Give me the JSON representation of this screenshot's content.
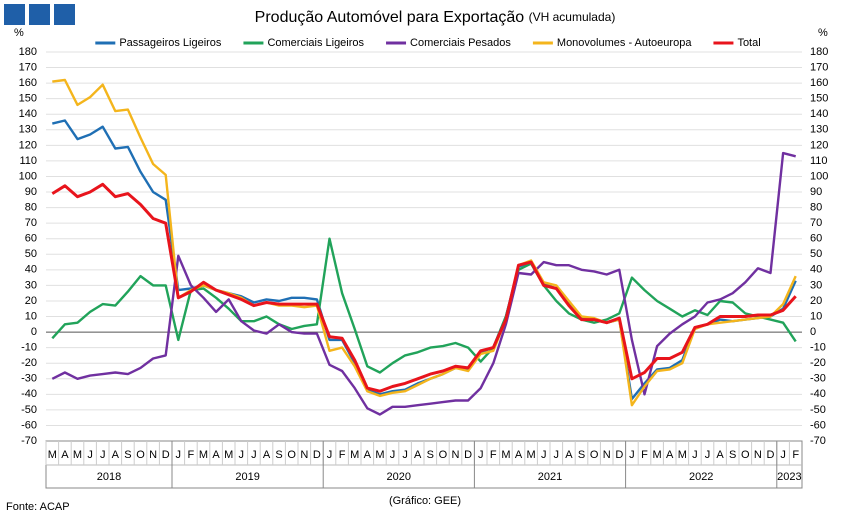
{
  "chart_data": {
    "type": "line",
    "title": "Produção Automóvel para Exportação",
    "subtitle": "(VH acumulada)",
    "y_label": "%",
    "y2_label": "%",
    "source": "Fonte: ACAP",
    "credit": "(Gráfico: GEE)",
    "categories": [
      "M",
      "A",
      "M",
      "J",
      "J",
      "A",
      "S",
      "O",
      "N",
      "D",
      "J",
      "F",
      "M",
      "A",
      "M",
      "J",
      "J",
      "A",
      "S",
      "O",
      "N",
      "D",
      "J",
      "F",
      "M",
      "A",
      "M",
      "J",
      "J",
      "A",
      "S",
      "O",
      "N",
      "D",
      "J",
      "F",
      "M",
      "A",
      "M",
      "J",
      "J",
      "A",
      "S",
      "O",
      "N",
      "D",
      "J",
      "F",
      "M",
      "A",
      "M",
      "J",
      "J",
      "A",
      "S",
      "O",
      "N",
      "D",
      "J",
      "F"
    ],
    "year_groups": [
      {
        "label": "2018",
        "count": 10
      },
      {
        "label": "2019",
        "count": 12
      },
      {
        "label": "2020",
        "count": 12
      },
      {
        "label": "2021",
        "count": 12
      },
      {
        "label": "2022",
        "count": 12
      },
      {
        "label": "2023",
        "count": 2
      }
    ],
    "ylim": [
      -70,
      180
    ],
    "yticks": [
      -70,
      -60,
      -50,
      -40,
      -30,
      -20,
      -10,
      0,
      10,
      20,
      30,
      40,
      50,
      60,
      70,
      80,
      90,
      100,
      110,
      120,
      130,
      140,
      150,
      160,
      170,
      180
    ],
    "grid": true,
    "legend": "top",
    "series": [
      {
        "name": "Passageiros Ligeiros",
        "color": "#1f6fb4",
        "values": [
          134,
          136,
          124,
          127,
          132,
          118,
          119,
          103,
          90,
          85,
          27,
          28,
          30,
          27,
          25,
          23,
          19,
          21,
          20,
          22,
          22,
          21,
          -5,
          -5,
          -20,
          -37,
          -40,
          -38,
          -37,
          -33,
          -30,
          -27,
          -23,
          -24,
          -13,
          -10,
          10,
          42,
          45,
          31,
          28,
          18,
          9,
          8,
          6,
          8,
          -43,
          -33,
          -24,
          -23,
          -18,
          3,
          5,
          8,
          7,
          8,
          9,
          10,
          15,
          33
        ]
      },
      {
        "name": "Comerciais Ligeiros",
        "color": "#21a35a",
        "values": [
          -4,
          5,
          6,
          13,
          18,
          17,
          26,
          36,
          30,
          30,
          -5,
          27,
          28,
          22,
          15,
          7,
          7,
          10,
          5,
          2,
          4,
          5,
          60,
          25,
          2,
          -22,
          -26,
          -20,
          -15,
          -13,
          -10,
          -9,
          -7,
          -10,
          -19,
          -10,
          10,
          40,
          44,
          30,
          20,
          12,
          8,
          6,
          8,
          12,
          35,
          27,
          20,
          15,
          10,
          14,
          11,
          20,
          19,
          12,
          10,
          8,
          6,
          -6
        ]
      },
      {
        "name": "Comerciais Pesados",
        "color": "#7030a0",
        "values": [
          -30,
          -26,
          -30,
          -28,
          -27,
          -26,
          -27,
          -23,
          -17,
          -15,
          49,
          30,
          22,
          13,
          21,
          7,
          1,
          -1,
          5,
          0,
          -1,
          -1,
          -21,
          -25,
          -36,
          -49,
          -53,
          -48,
          -48,
          -47,
          -46,
          -45,
          -44,
          -44,
          -36,
          -20,
          5,
          38,
          37,
          45,
          43,
          43,
          40,
          39,
          37,
          40,
          -5,
          -40,
          -9,
          -1,
          5,
          10,
          19,
          21,
          25,
          32,
          41,
          38,
          115,
          113
        ]
      },
      {
        "name": "Monovolumes - Autoeuropa",
        "color": "#f4b51c",
        "values": [
          161,
          162,
          146,
          151,
          159,
          142,
          143,
          125,
          108,
          101,
          22,
          27,
          30,
          27,
          25,
          22,
          17,
          19,
          17,
          17,
          16,
          17,
          -12,
          -10,
          -22,
          -38,
          -41,
          -39,
          -38,
          -34,
          -30,
          -27,
          -23,
          -25,
          -14,
          -12,
          8,
          43,
          46,
          32,
          30,
          20,
          10,
          9,
          6,
          8,
          -47,
          -35,
          -25,
          -24,
          -20,
          2,
          5,
          6,
          7,
          8,
          9,
          10,
          18,
          36
        ]
      },
      {
        "name": "Total",
        "color": "#e8141c",
        "values": [
          89,
          94,
          87,
          90,
          95,
          87,
          89,
          82,
          73,
          70,
          22,
          26,
          32,
          27,
          24,
          21,
          17,
          19,
          18,
          18,
          18,
          18,
          -3,
          -4,
          -18,
          -36,
          -38,
          -35,
          -33,
          -30,
          -27,
          -25,
          -22,
          -23,
          -12,
          -10,
          8,
          43,
          45,
          30,
          28,
          17,
          8,
          8,
          6,
          9,
          -30,
          -26,
          -17,
          -17,
          -13,
          3,
          5,
          10,
          10,
          10,
          11,
          11,
          14,
          23
        ]
      }
    ]
  }
}
